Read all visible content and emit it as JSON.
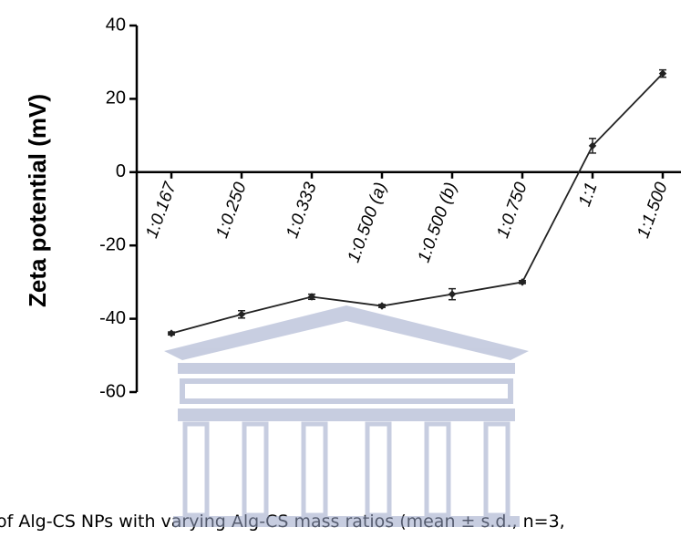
{
  "chart_data": {
    "type": "line",
    "ylabel": "Zeta potential (mV)",
    "caption": "of Alg-CS NPs with varying Alg-CS mass ratios  (mean ± s.d., n=3,",
    "categories": [
      "1:0.167",
      "1:0.250",
      "1:0.333",
      "1:0.500 (a)",
      "1:0.500 (b)",
      "1:0.750",
      "1:1",
      "1:1.500"
    ],
    "values": [
      -44,
      -38.8,
      -34,
      -36.5,
      -33.3,
      -30,
      7.2,
      26.9
    ],
    "errors": [
      0.4,
      1.0,
      0.7,
      0.4,
      1.5,
      0.4,
      2.0,
      1.0
    ],
    "color": "#222222",
    "ylim": [
      -60,
      40
    ],
    "yticks": [
      -60,
      -40,
      -20,
      0,
      20,
      40
    ]
  }
}
